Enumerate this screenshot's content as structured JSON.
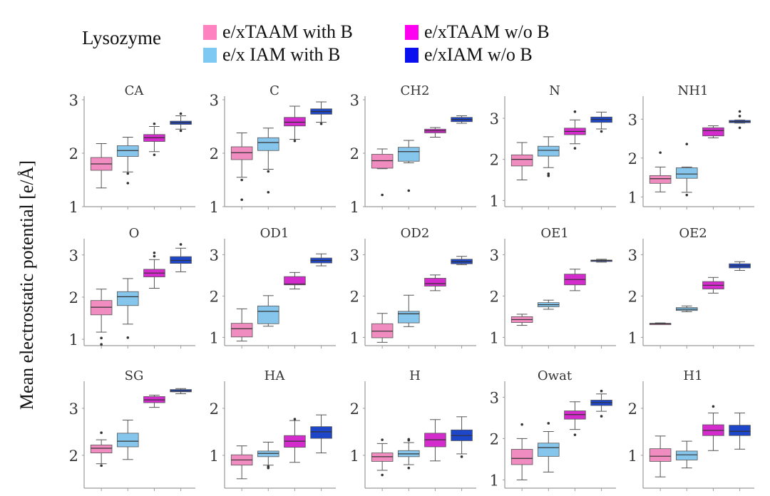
{
  "legend": {
    "title": "Lysozyme",
    "items": [
      {
        "label": "e/xTAAM with B",
        "color": "#ff82c0"
      },
      {
        "label": "e/x IAM with B",
        "color": "#7ec8f4"
      },
      {
        "label": "e/xTAAM w/o B",
        "color": "#ff00f0"
      },
      {
        "label": "e/xIAM w/o B",
        "color": "#0a0ff0"
      }
    ]
  },
  "chart_data": {
    "type": "box",
    "ylabel": "Mean electrostatic potential [e/Å]",
    "series_names": [
      "e/xTAAM with B",
      "e/x IAM with B",
      "e/xTAAM w/o B",
      "e/xIAM w/o B"
    ],
    "box_colors": [
      "#f08cc0",
      "#86c6ec",
      "#d42ccc",
      "#1e46c8"
    ],
    "panels": [
      {
        "title": "CA",
        "ylim": [
          1,
          3
        ],
        "yticks": [
          1,
          2,
          3
        ],
        "boxes": [
          {
            "min": 1.35,
            "q1": 1.68,
            "median": 1.8,
            "q3": 1.92,
            "max": 2.18,
            "outliers": []
          },
          {
            "min": 1.65,
            "q1": 1.94,
            "median": 2.05,
            "q3": 2.14,
            "max": 2.3,
            "outliers": [
              1.62,
              1.44
            ]
          },
          {
            "min": 2.03,
            "q1": 2.22,
            "median": 2.29,
            "q3": 2.35,
            "max": 2.5,
            "outliers": [
              1.97,
              2.55
            ]
          },
          {
            "min": 2.45,
            "q1": 2.54,
            "median": 2.57,
            "q3": 2.6,
            "max": 2.7,
            "outliers": [
              2.42,
              2.74
            ]
          }
        ]
      },
      {
        "title": "C",
        "ylim": [
          1,
          3
        ],
        "yticks": [
          1,
          2,
          3
        ],
        "boxes": [
          {
            "min": 1.55,
            "q1": 1.88,
            "median": 2.01,
            "q3": 2.12,
            "max": 2.38,
            "outliers": [
              1.5,
              1.13
            ]
          },
          {
            "min": 1.7,
            "q1": 2.05,
            "median": 2.2,
            "q3": 2.29,
            "max": 2.47,
            "outliers": [
              1.66,
              1.27
            ]
          },
          {
            "min": 2.26,
            "q1": 2.51,
            "median": 2.58,
            "q3": 2.67,
            "max": 2.88,
            "outliers": [
              2.23
            ]
          },
          {
            "min": 2.58,
            "q1": 2.73,
            "median": 2.78,
            "q3": 2.83,
            "max": 2.96,
            "outliers": [
              2.55
            ]
          }
        ]
      },
      {
        "title": "CH2",
        "ylim": [
          1,
          3
        ],
        "yticks": [
          1,
          2,
          3
        ],
        "boxes": [
          {
            "min": 1.71,
            "q1": 1.72,
            "median": 1.86,
            "q3": 1.98,
            "max": 2.08,
            "outliers": [
              1.22
            ]
          },
          {
            "min": 1.82,
            "q1": 1.85,
            "median": 2.03,
            "q3": 2.11,
            "max": 2.24,
            "outliers": [
              1.3
            ]
          },
          {
            "min": 2.3,
            "q1": 2.38,
            "median": 2.42,
            "q3": 2.45,
            "max": 2.48,
            "outliers": []
          },
          {
            "min": 2.56,
            "q1": 2.59,
            "median": 2.63,
            "q3": 2.67,
            "max": 2.7,
            "outliers": []
          }
        ]
      },
      {
        "title": "N",
        "ylim": [
          0.85,
          3.45
        ],
        "yticks": [
          1,
          2,
          3
        ],
        "boxes": [
          {
            "min": 1.5,
            "q1": 1.84,
            "median": 2.0,
            "q3": 2.11,
            "max": 2.41,
            "outliers": []
          },
          {
            "min": 1.8,
            "q1": 2.08,
            "median": 2.22,
            "q3": 2.32,
            "max": 2.55,
            "outliers": [
              1.6,
              1.65
            ]
          },
          {
            "min": 2.38,
            "q1": 2.6,
            "median": 2.68,
            "q3": 2.76,
            "max": 2.96,
            "outliers": [
              2.27,
              3.16
            ]
          },
          {
            "min": 2.74,
            "q1": 2.9,
            "median": 2.97,
            "q3": 3.03,
            "max": 3.15,
            "outliers": [
              2.68
            ]
          }
        ]
      },
      {
        "title": "NH1",
        "ylim": [
          0.75,
          3.5
        ],
        "yticks": [
          1,
          2,
          3
        ],
        "boxes": [
          {
            "min": 1.13,
            "q1": 1.35,
            "median": 1.47,
            "q3": 1.55,
            "max": 1.77,
            "outliers": [
              2.14
            ]
          },
          {
            "min": 1.12,
            "q1": 1.48,
            "median": 1.59,
            "q3": 1.75,
            "max": 1.77,
            "outliers": [
              1.05,
              2.36
            ]
          },
          {
            "min": 2.52,
            "q1": 2.57,
            "median": 2.71,
            "q3": 2.78,
            "max": 2.83,
            "outliers": []
          },
          {
            "min": 2.9,
            "q1": 2.91,
            "median": 2.94,
            "q3": 2.97,
            "max": 2.98,
            "outliers": [
              2.78,
              3.08,
              3.2
            ]
          }
        ]
      },
      {
        "title": "O",
        "ylim": [
          0.85,
          3.3
        ],
        "yticks": [
          1,
          2,
          3
        ],
        "boxes": [
          {
            "min": 1.17,
            "q1": 1.58,
            "median": 1.76,
            "q3": 1.92,
            "max": 2.19,
            "outliers": [
              1.03,
              0.88
            ]
          },
          {
            "min": 1.36,
            "q1": 1.8,
            "median": 2.01,
            "q3": 2.13,
            "max": 2.44,
            "outliers": [
              1.04
            ]
          },
          {
            "min": 2.21,
            "q1": 2.48,
            "median": 2.57,
            "q3": 2.66,
            "max": 2.89,
            "outliers": [
              2.97,
              3.05
            ]
          },
          {
            "min": 2.6,
            "q1": 2.8,
            "median": 2.87,
            "q3": 2.96,
            "max": 3.16,
            "outliers": [
              3.25
            ]
          }
        ]
      },
      {
        "title": "OD1",
        "ylim": [
          0.8,
          3.3
        ],
        "yticks": [
          1,
          2,
          3
        ],
        "boxes": [
          {
            "min": 0.91,
            "q1": 1.01,
            "median": 1.21,
            "q3": 1.34,
            "max": 1.69,
            "outliers": []
          },
          {
            "min": 1.27,
            "q1": 1.33,
            "median": 1.63,
            "q3": 1.76,
            "max": 2.01,
            "outliers": []
          },
          {
            "min": 2.17,
            "q1": 2.27,
            "median": 2.29,
            "q3": 2.47,
            "max": 2.57,
            "outliers": []
          },
          {
            "min": 2.73,
            "q1": 2.8,
            "median": 2.86,
            "q3": 2.92,
            "max": 3.02,
            "outliers": []
          }
        ]
      },
      {
        "title": "OD2",
        "ylim": [
          0.8,
          3.3
        ],
        "yticks": [
          1,
          2,
          3
        ],
        "boxes": [
          {
            "min": 0.88,
            "q1": 0.99,
            "median": 1.15,
            "q3": 1.33,
            "max": 1.58,
            "outliers": []
          },
          {
            "min": 1.26,
            "q1": 1.35,
            "median": 1.57,
            "q3": 1.63,
            "max": 2.02,
            "outliers": []
          },
          {
            "min": 2.13,
            "q1": 2.24,
            "median": 2.3,
            "q3": 2.43,
            "max": 2.51,
            "outliers": []
          },
          {
            "min": 2.76,
            "q1": 2.78,
            "median": 2.83,
            "q3": 2.89,
            "max": 2.96,
            "outliers": []
          }
        ]
      },
      {
        "title": "OE1",
        "ylim": [
          0.8,
          3.3
        ],
        "yticks": [
          1,
          2,
          3
        ],
        "boxes": [
          {
            "min": 1.29,
            "q1": 1.36,
            "median": 1.43,
            "q3": 1.5,
            "max": 1.56,
            "outliers": []
          },
          {
            "min": 1.68,
            "q1": 1.74,
            "median": 1.79,
            "q3": 1.84,
            "max": 1.9,
            "outliers": []
          },
          {
            "min": 2.13,
            "q1": 2.27,
            "median": 2.4,
            "q3": 2.53,
            "max": 2.65,
            "outliers": []
          },
          {
            "min": 2.82,
            "q1": 2.84,
            "median": 2.86,
            "q3": 2.87,
            "max": 2.89,
            "outliers": []
          }
        ]
      },
      {
        "title": "OE2",
        "ylim": [
          0.8,
          3.3
        ],
        "yticks": [
          1,
          2,
          3
        ],
        "boxes": [
          {
            "min": 1.31,
            "q1": 1.32,
            "median": 1.33,
            "q3": 1.34,
            "max": 1.35,
            "outliers": []
          },
          {
            "min": 1.62,
            "q1": 1.65,
            "median": 1.68,
            "q3": 1.72,
            "max": 1.76,
            "outliers": []
          },
          {
            "min": 2.07,
            "q1": 2.17,
            "median": 2.26,
            "q3": 2.35,
            "max": 2.45,
            "outliers": []
          },
          {
            "min": 2.62,
            "q1": 2.68,
            "median": 2.73,
            "q3": 2.78,
            "max": 2.83,
            "outliers": []
          }
        ]
      },
      {
        "title": "SG",
        "ylim": [
          1.3,
          3.5
        ],
        "yticks": [
          2,
          3
        ],
        "boxes": [
          {
            "min": 1.82,
            "q1": 2.05,
            "median": 2.15,
            "q3": 2.22,
            "max": 2.33,
            "outliers": [
              1.78,
              2.48
            ]
          },
          {
            "min": 1.91,
            "q1": 2.18,
            "median": 2.3,
            "q3": 2.47,
            "max": 2.75,
            "outliers": []
          },
          {
            "min": 3.02,
            "q1": 3.12,
            "median": 3.18,
            "q3": 3.25,
            "max": 3.28,
            "outliers": []
          },
          {
            "min": 3.31,
            "q1": 3.35,
            "median": 3.37,
            "q3": 3.4,
            "max": 3.42,
            "outliers": []
          }
        ]
      },
      {
        "title": "HA",
        "ylim": [
          0.3,
          2.5
        ],
        "yticks": [
          1,
          2
        ],
        "boxes": [
          {
            "min": 0.5,
            "q1": 0.79,
            "median": 0.9,
            "q3": 1.01,
            "max": 1.2,
            "outliers": []
          },
          {
            "min": 0.79,
            "q1": 0.97,
            "median": 1.04,
            "q3": 1.09,
            "max": 1.28,
            "outliers": [
              0.73,
              0.76
            ]
          },
          {
            "min": 0.85,
            "q1": 1.17,
            "median": 1.3,
            "q3": 1.42,
            "max": 1.74,
            "outliers": [
              1.77
            ]
          },
          {
            "min": 1.05,
            "q1": 1.36,
            "median": 1.5,
            "q3": 1.61,
            "max": 1.86,
            "outliers": []
          }
        ]
      },
      {
        "title": "H",
        "ylim": [
          0.3,
          2.5
        ],
        "yticks": [
          1,
          2
        ],
        "boxes": [
          {
            "min": 0.68,
            "q1": 0.87,
            "median": 0.97,
            "q3": 1.05,
            "max": 1.25,
            "outliers": [
              0.58,
              1.33
            ]
          },
          {
            "min": 0.8,
            "q1": 0.97,
            "median": 1.03,
            "q3": 1.1,
            "max": 1.27,
            "outliers": [
              0.73,
              1.32,
              1.34
            ]
          },
          {
            "min": 0.88,
            "q1": 1.18,
            "median": 1.33,
            "q3": 1.47,
            "max": 1.76,
            "outliers": []
          },
          {
            "min": 1.03,
            "q1": 1.31,
            "median": 1.42,
            "q3": 1.54,
            "max": 1.82,
            "outliers": [
              0.97
            ]
          }
        ]
      },
      {
        "title": "Owat",
        "ylim": [
          0.8,
          3.3
        ],
        "yticks": [
          1,
          2,
          3
        ],
        "boxes": [
          {
            "min": 1.0,
            "q1": 1.37,
            "median": 1.52,
            "q3": 1.74,
            "max": 2.0,
            "outliers": [
              2.34
            ]
          },
          {
            "min": 1.19,
            "q1": 1.57,
            "median": 1.78,
            "q3": 1.89,
            "max": 2.17,
            "outliers": [
              2.37
            ]
          },
          {
            "min": 2.22,
            "q1": 2.47,
            "median": 2.58,
            "q3": 2.67,
            "max": 2.89,
            "outliers": [
              2.09
            ]
          },
          {
            "min": 2.66,
            "q1": 2.8,
            "median": 2.87,
            "q3": 2.93,
            "max": 3.08,
            "outliers": [
              2.54,
              3.15
            ]
          }
        ]
      },
      {
        "title": "H1",
        "ylim": [
          0.3,
          2.5
        ],
        "yticks": [
          1,
          2
        ],
        "boxes": [
          {
            "min": 0.54,
            "q1": 0.87,
            "median": 0.98,
            "q3": 1.14,
            "max": 1.41,
            "outliers": []
          },
          {
            "min": 0.73,
            "q1": 0.9,
            "median": 1.01,
            "q3": 1.09,
            "max": 1.3,
            "outliers": []
          },
          {
            "min": 1.1,
            "q1": 1.42,
            "median": 1.53,
            "q3": 1.65,
            "max": 1.9,
            "outliers": [
              2.04
            ]
          },
          {
            "min": 1.13,
            "q1": 1.42,
            "median": 1.51,
            "q3": 1.64,
            "max": 1.9,
            "outliers": []
          }
        ]
      }
    ]
  }
}
